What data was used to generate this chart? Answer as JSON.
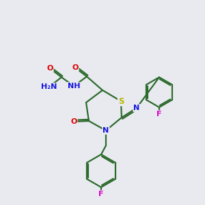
{
  "background_color": "#e8eaf0",
  "bond_color": "#2d6b2d",
  "atom_colors": {
    "N": "#1414e0",
    "O": "#e00000",
    "S": "#b8b800",
    "F": "#e000cc",
    "H": "#707070",
    "C": "#2d6b2d"
  },
  "figsize": [
    3.0,
    3.0
  ],
  "dpi": 100
}
